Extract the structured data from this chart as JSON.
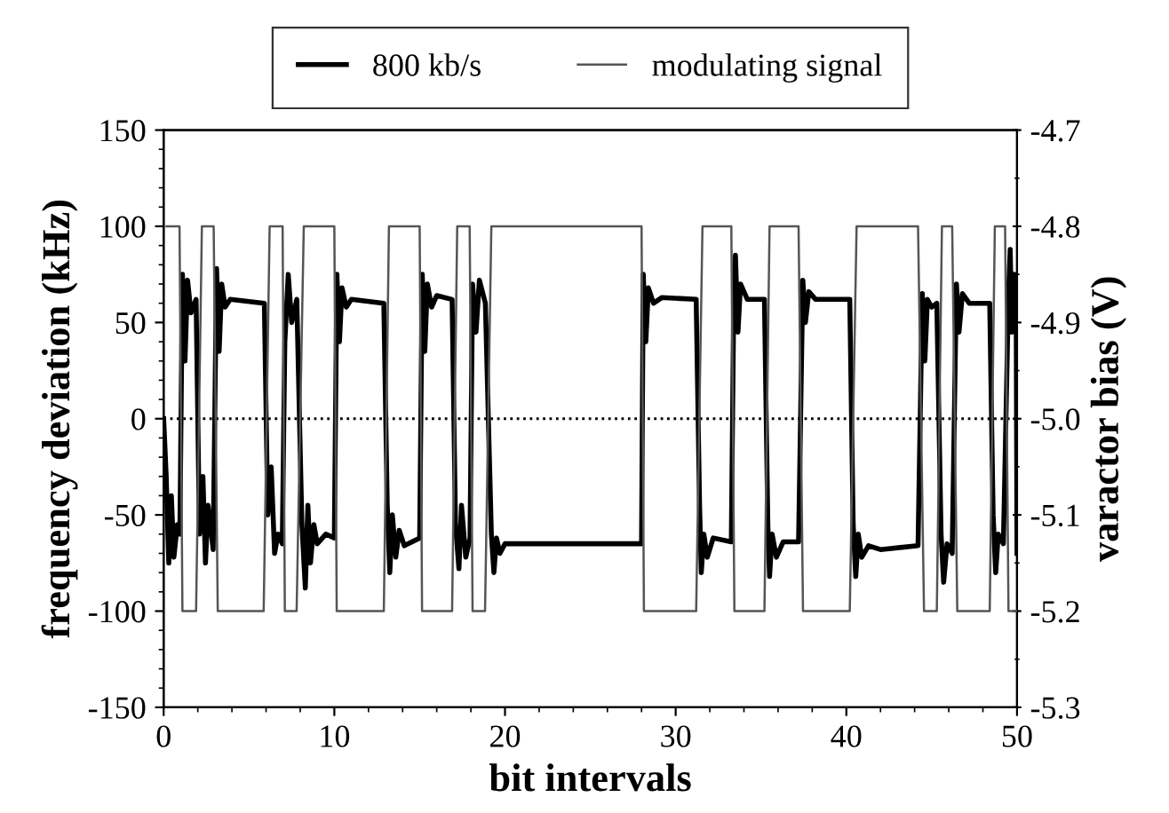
{
  "chart_data": {
    "type": "line",
    "xlabel": "bit intervals",
    "ylabel": "frequency deviation (kHz)",
    "y2label": "varactor bias (V)",
    "xlim": [
      0,
      50
    ],
    "xticks": [
      0,
      10,
      20,
      30,
      40,
      50
    ],
    "ylim": [
      -150,
      150
    ],
    "yticks": [
      -150,
      -100,
      -50,
      0,
      50,
      100,
      150
    ],
    "y2lim": [
      -5.3,
      -4.7
    ],
    "y2ticks": [
      -5.3,
      -5.2,
      -5.1,
      {
        "value": -5.0,
        "label": "-5.0"
      },
      -4.9,
      -4.8,
      -4.7
    ],
    "grid": false,
    "legend": "top",
    "marker": "none",
    "ref_lines": [
      {
        "axis": "y",
        "value": 0,
        "color": "#000000",
        "line_style": "dotted"
      }
    ],
    "series": [
      {
        "name": "800 kb/s",
        "color": "#000000",
        "line_style": "solid",
        "x": [
          0,
          0.15,
          0.3,
          0.45,
          0.6,
          0.8,
          0.95,
          1.1,
          1.25,
          1.4,
          1.6,
          1.9,
          2.1,
          2.3,
          2.45,
          2.6,
          2.9,
          3.1,
          3.25,
          3.4,
          3.6,
          3.9,
          5.9,
          6.1,
          6.3,
          6.5,
          6.7,
          6.95,
          7.1,
          7.3,
          7.5,
          7.8,
          8.1,
          8.3,
          8.45,
          8.6,
          8.8,
          9.0,
          9.5,
          10.0,
          10.15,
          10.3,
          10.45,
          10.7,
          11.0,
          12.9,
          13.1,
          13.25,
          13.4,
          13.6,
          13.8,
          14.1,
          15.0,
          15.15,
          15.3,
          15.45,
          15.7,
          16.0,
          16.9,
          17.1,
          17.3,
          17.45,
          17.7,
          17.95,
          18.1,
          18.3,
          18.5,
          18.85,
          19.2,
          19.35,
          19.5,
          19.7,
          20.0,
          28.0,
          28.1,
          28.25,
          28.4,
          28.7,
          29.2,
          31.2,
          31.4,
          31.5,
          31.65,
          31.85,
          32.2,
          33.26,
          33.4,
          33.5,
          33.65,
          33.8,
          34.2,
          35.2,
          35.4,
          35.5,
          35.65,
          35.9,
          36.3,
          37.2,
          37.45,
          37.6,
          37.8,
          38.2,
          40.2,
          40.4,
          40.55,
          40.7,
          40.9,
          41.3,
          42.0,
          44.2,
          44.45,
          44.6,
          44.75,
          45.0,
          45.3,
          45.55,
          45.7,
          45.9,
          46.2,
          46.45,
          46.6,
          46.8,
          47.2,
          48.4,
          48.6,
          48.75,
          48.9,
          49.2,
          49.5,
          49.6,
          49.7,
          49.85,
          49.95,
          50.0
        ],
        "values": [
          0,
          -30,
          -75,
          -40,
          -72,
          -55,
          -60,
          75,
          30,
          72,
          55,
          62,
          -60,
          -30,
          -75,
          -45,
          -68,
          78,
          35,
          70,
          58,
          62,
          60,
          -50,
          -25,
          -70,
          -60,
          -65,
          40,
          75,
          50,
          62,
          -55,
          -88,
          -45,
          -75,
          -55,
          -65,
          -60,
          -62,
          75,
          40,
          68,
          58,
          62,
          60,
          -45,
          -80,
          -50,
          -72,
          -58,
          -66,
          -62,
          75,
          35,
          70,
          58,
          64,
          62,
          -55,
          -78,
          -45,
          -72,
          -62,
          70,
          45,
          72,
          60,
          -60,
          -80,
          -62,
          -70,
          -65,
          -65,
          75,
          40,
          68,
          60,
          63,
          62,
          -45,
          -80,
          -60,
          -72,
          -62,
          -64,
          60,
          85,
          45,
          70,
          62,
          62,
          -55,
          -82,
          -60,
          -72,
          -64,
          -64,
          72,
          50,
          66,
          62,
          62,
          -55,
          -82,
          -60,
          -72,
          -66,
          -68,
          -66,
          65,
          30,
          62,
          58,
          60,
          -60,
          -85,
          -65,
          -70,
          70,
          45,
          65,
          60,
          60,
          -50,
          -80,
          -60,
          -65,
          65,
          88,
          45,
          75,
          60,
          -70
        ]
      },
      {
        "name": "modulating signal",
        "color": "#555555",
        "line_style": "solid",
        "axis": "y2",
        "x": [
          0.17,
          0.93,
          1.1,
          1.9,
          2.24,
          2.93,
          3.17,
          5.86,
          6.21,
          6.97,
          7.1,
          7.79,
          8.21,
          10.0,
          10.14,
          12.9,
          13.2,
          15.0,
          15.14,
          16.9,
          17.2,
          17.93,
          18.1,
          18.83,
          19.2,
          28.0,
          28.14,
          31.2,
          31.57,
          33.26,
          33.44,
          35.2,
          35.5,
          37.2,
          37.46,
          40.2,
          40.6,
          44.2,
          44.55,
          45.3,
          45.6,
          46.2,
          46.5,
          48.4,
          48.7,
          49.3,
          49.5,
          50
        ],
        "values": [
          -4.8,
          -4.8,
          -5.2,
          -5.2,
          -4.8,
          -4.8,
          -5.2,
          -5.2,
          -4.8,
          -4.8,
          -5.2,
          -5.2,
          -4.8,
          -4.8,
          -5.2,
          -5.2,
          -4.8,
          -4.8,
          -5.2,
          -5.2,
          -4.8,
          -4.8,
          -5.2,
          -5.2,
          -4.8,
          -4.8,
          -5.2,
          -5.2,
          -4.8,
          -4.8,
          -5.2,
          -5.2,
          -4.8,
          -4.8,
          -5.2,
          -5.2,
          -4.8,
          -4.8,
          -5.2,
          -5.2,
          -4.8,
          -4.8,
          -5.2,
          -5.2,
          -4.8,
          -4.8,
          -5.2,
          -5.2
        ]
      }
    ]
  }
}
